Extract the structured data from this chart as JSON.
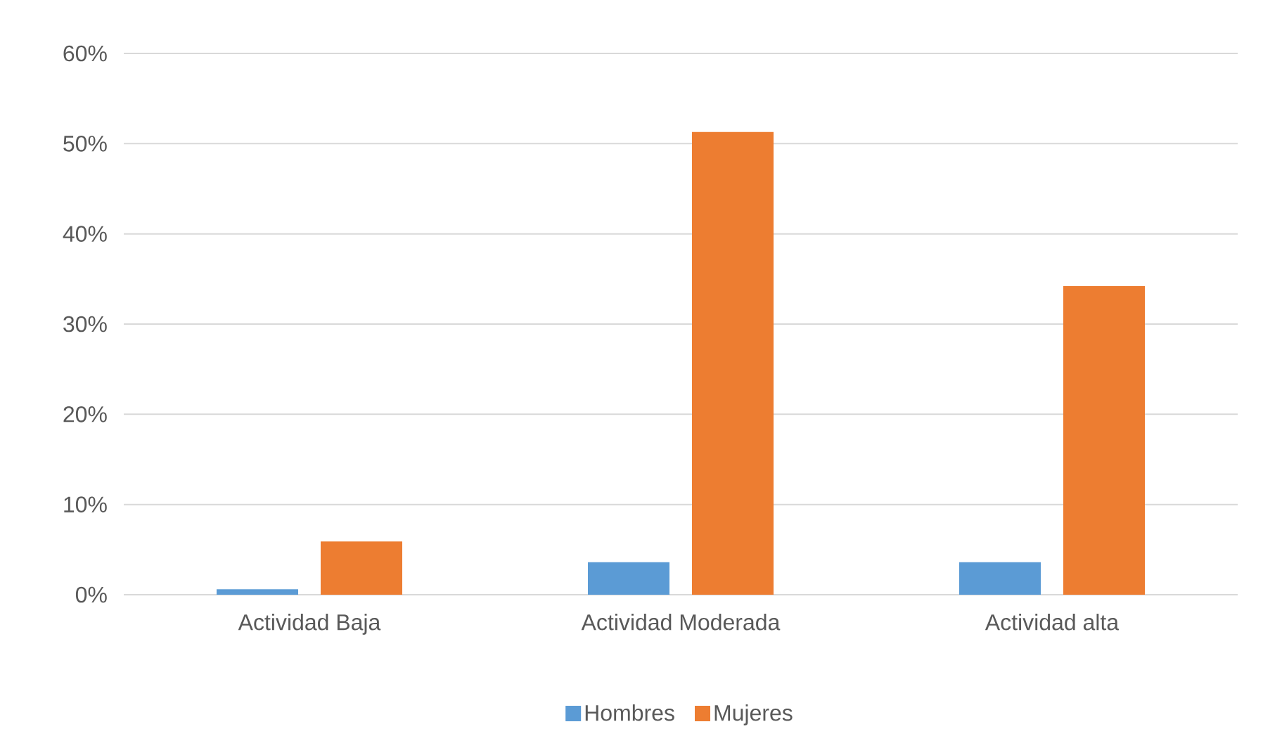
{
  "chart_data": {
    "type": "bar",
    "categories": [
      "Actividad Baja",
      "Actividad Moderada",
      "Actividad alta"
    ],
    "series": [
      {
        "name": "Hombres",
        "color": "#5b9bd5",
        "values": [
          0.6,
          3.6,
          3.6
        ]
      },
      {
        "name": "Mujeres",
        "color": "#ed7d31",
        "values": [
          5.9,
          51.3,
          34.2
        ]
      }
    ],
    "ylim": [
      0,
      60
    ],
    "yticks": [
      {
        "value": 0,
        "label": "0%"
      },
      {
        "value": 10,
        "label": "10%"
      },
      {
        "value": 20,
        "label": "20%"
      },
      {
        "value": 30,
        "label": "30%"
      },
      {
        "value": 40,
        "label": "40%"
      },
      {
        "value": 50,
        "label": "50%"
      },
      {
        "value": 60,
        "label": "60%"
      }
    ],
    "grid": "y",
    "legend": "bottom"
  }
}
